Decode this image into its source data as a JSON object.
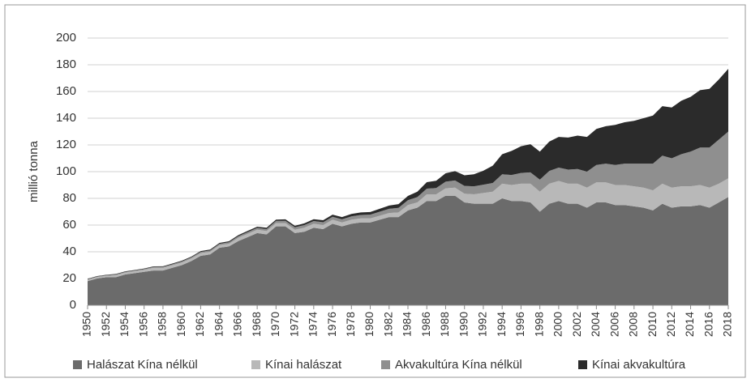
{
  "chart_data": {
    "type": "stacked_area",
    "ylabel": "millió tonna",
    "x": [
      1950,
      1951,
      1952,
      1953,
      1954,
      1955,
      1956,
      1957,
      1958,
      1959,
      1960,
      1961,
      1962,
      1963,
      1964,
      1965,
      1966,
      1967,
      1968,
      1969,
      1970,
      1971,
      1972,
      1973,
      1974,
      1975,
      1976,
      1977,
      1978,
      1979,
      1980,
      1981,
      1982,
      1983,
      1984,
      1985,
      1986,
      1987,
      1988,
      1989,
      1990,
      1991,
      1992,
      1993,
      1994,
      1995,
      1996,
      1997,
      1998,
      1999,
      2000,
      2001,
      2002,
      2003,
      2004,
      2005,
      2006,
      2007,
      2008,
      2009,
      2010,
      2011,
      2012,
      2013,
      2014,
      2015,
      2016,
      2017,
      2018
    ],
    "xlim": [
      1950,
      2018
    ],
    "xticks": [
      1950,
      1952,
      1954,
      1956,
      1958,
      1960,
      1962,
      1964,
      1966,
      1968,
      1970,
      1972,
      1974,
      1976,
      1978,
      1980,
      1982,
      1984,
      1986,
      1988,
      1990,
      1992,
      1994,
      1996,
      1998,
      2000,
      2002,
      2004,
      2006,
      2008,
      2010,
      2012,
      2014,
      2016,
      2018
    ],
    "ylim": [
      0,
      200
    ],
    "yticks": [
      0,
      20,
      40,
      60,
      80,
      100,
      120,
      140,
      160,
      180,
      200
    ],
    "grid": true,
    "legend": "bottom",
    "series": [
      {
        "name": "Halászat Kína nélkül",
        "color": "#6b6b6b",
        "values": [
          18,
          20,
          21,
          21,
          23,
          24,
          25,
          26,
          26,
          28,
          30,
          33,
          37,
          38,
          43,
          44,
          48,
          51,
          54,
          53,
          59,
          59,
          54,
          55,
          58,
          57,
          61,
          59,
          61,
          62,
          62,
          64,
          66,
          66,
          71,
          73,
          78,
          78,
          82,
          82,
          77,
          76,
          76,
          76,
          80,
          78,
          78,
          77,
          70,
          76,
          78,
          76,
          76,
          73,
          77,
          77,
          75,
          75,
          74,
          73,
          71,
          76,
          73,
          74,
          74,
          75,
          73,
          77,
          81
        ]
      },
      {
        "name": "Kínai halászat",
        "color": "#b8b8b8",
        "values": [
          1,
          1,
          1,
          1.5,
          1.5,
          1.5,
          1.5,
          2,
          2,
          2,
          2,
          2,
          2,
          2,
          2,
          2,
          2.5,
          2.5,
          2.5,
          2.5,
          2.5,
          2.5,
          2.5,
          3,
          3,
          3,
          3,
          3,
          3,
          3,
          3,
          3,
          3,
          3.5,
          4,
          4,
          5,
          5,
          5.5,
          6,
          6.5,
          7,
          8,
          9,
          11,
          12,
          13,
          14,
          15,
          15,
          15,
          15,
          15,
          15,
          15,
          15,
          15,
          15,
          15,
          15,
          15,
          15,
          15,
          15,
          15,
          15,
          15,
          14,
          14
        ]
      },
      {
        "name": "Akvakultúra Kína nélkül",
        "color": "#8f8f8f",
        "values": [
          0.5,
          0.5,
          0.5,
          0.5,
          0.5,
          0.5,
          0.6,
          0.6,
          0.7,
          0.7,
          0.8,
          0.8,
          0.9,
          1,
          1,
          1.1,
          1.2,
          1.3,
          1.4,
          1.5,
          1.6,
          1.7,
          1.8,
          2,
          2,
          2.1,
          2.2,
          2.3,
          2.5,
          2.6,
          2.8,
          3,
          3.2,
          3.4,
          3.6,
          4,
          4.3,
          4.7,
          5,
          5.4,
          5.8,
          6,
          6.2,
          6.5,
          7,
          7.5,
          8,
          8.5,
          9,
          9.5,
          10,
          10.5,
          11,
          12,
          13,
          14,
          15,
          16,
          17,
          18,
          20,
          21,
          22,
          24,
          26,
          28,
          30,
          33,
          35
        ]
      },
      {
        "name": "Kínai akvakultúra",
        "color": "#2b2b2b",
        "values": [
          0.3,
          0.3,
          0.3,
          0.4,
          0.4,
          0.4,
          0.4,
          0.5,
          0.5,
          0.5,
          0.5,
          0.6,
          0.6,
          0.7,
          0.7,
          0.8,
          0.8,
          0.9,
          0.9,
          1,
          1,
          1.1,
          1.2,
          1.3,
          1.4,
          1.5,
          1.6,
          1.7,
          1.8,
          1.9,
          2,
          2.2,
          2.4,
          2.8,
          3.2,
          4,
          4.8,
          5.5,
          6.3,
          7,
          8,
          9,
          10.5,
          13,
          15,
          18,
          20,
          21,
          21,
          22,
          23,
          24,
          25,
          26,
          27,
          28,
          30,
          31,
          32,
          34,
          36,
          37,
          38,
          40,
          41,
          43,
          44,
          45,
          47
        ]
      }
    ]
  }
}
